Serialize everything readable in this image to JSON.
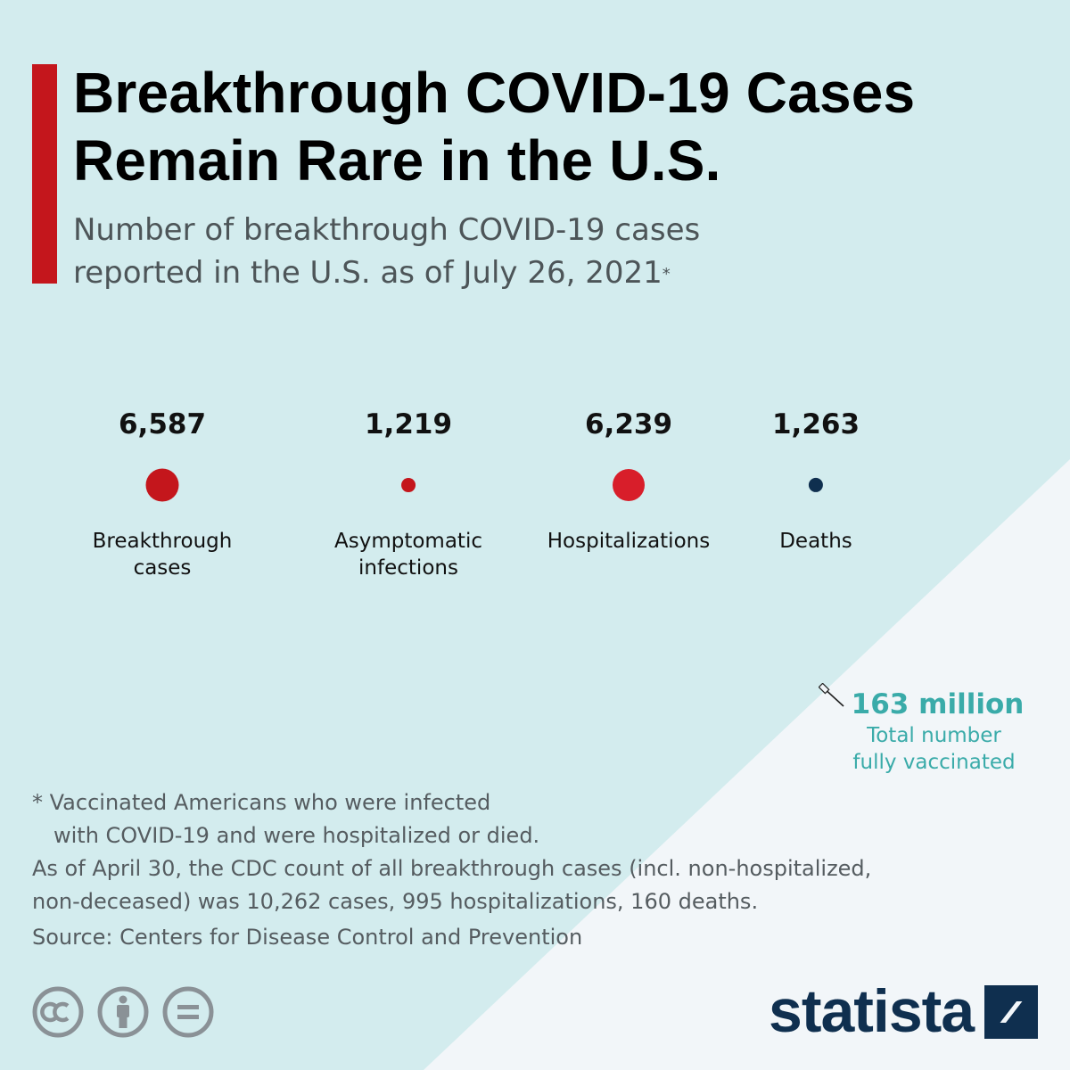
{
  "title": "Breakthrough COVID-19 Cases Remain Rare in the U.S.",
  "subtitle_line1": "Number of breakthrough COVID-19 cases",
  "subtitle_line2": "reported in the U.S. as of July 26, 2021",
  "subtitle_star": "*",
  "colors": {
    "background": "#d3ecee",
    "triangle": "#f2f6f9",
    "accent": "#c4161c",
    "teal": "#3aaba9",
    "navy": "#0f2f4f"
  },
  "chart_data": {
    "type": "scatter",
    "title": "Breakthrough COVID-19 Cases Remain Rare in the U.S.",
    "subtitle": "Number of breakthrough COVID-19 cases reported in the U.S. as of July 26, 2021*",
    "categories": [
      "Breakthrough cases",
      "Asymptomatic infections",
      "Hospitalizations",
      "Deaths"
    ],
    "values": [
      6587,
      1219,
      6239,
      1263
    ],
    "value_labels": [
      "6,587",
      "1,219",
      "6,239",
      "1,263"
    ],
    "label_lines": [
      [
        "Breakthrough",
        "cases"
      ],
      [
        "Asymptomatic",
        "infections"
      ],
      [
        "Hospitalizations"
      ],
      [
        "Deaths"
      ]
    ],
    "dot_colors": [
      "#c4161c",
      "#c4161c",
      "#d81e2a",
      "#0f2f4f"
    ],
    "encoding": "bubble area proportional to value"
  },
  "vaccinated": {
    "value": "163 million",
    "label_line1": "Total number",
    "label_line2": "fully vaccinated"
  },
  "footnote": {
    "line1": "* Vaccinated Americans who were infected",
    "line2": "with COVID-19 and were hospitalized or died.",
    "line3": "As of April 30, the CDC count of all breakthrough cases (incl. non-hospitalized,",
    "line4": "non-deceased) was 10,262 cases, 995 hospitalizations, 160 deaths."
  },
  "source": "Source: Centers for Disease Control and Prevention",
  "license_icons": [
    "cc-icon",
    "attribution-icon",
    "no-derivatives-icon"
  ],
  "brand": "statista"
}
